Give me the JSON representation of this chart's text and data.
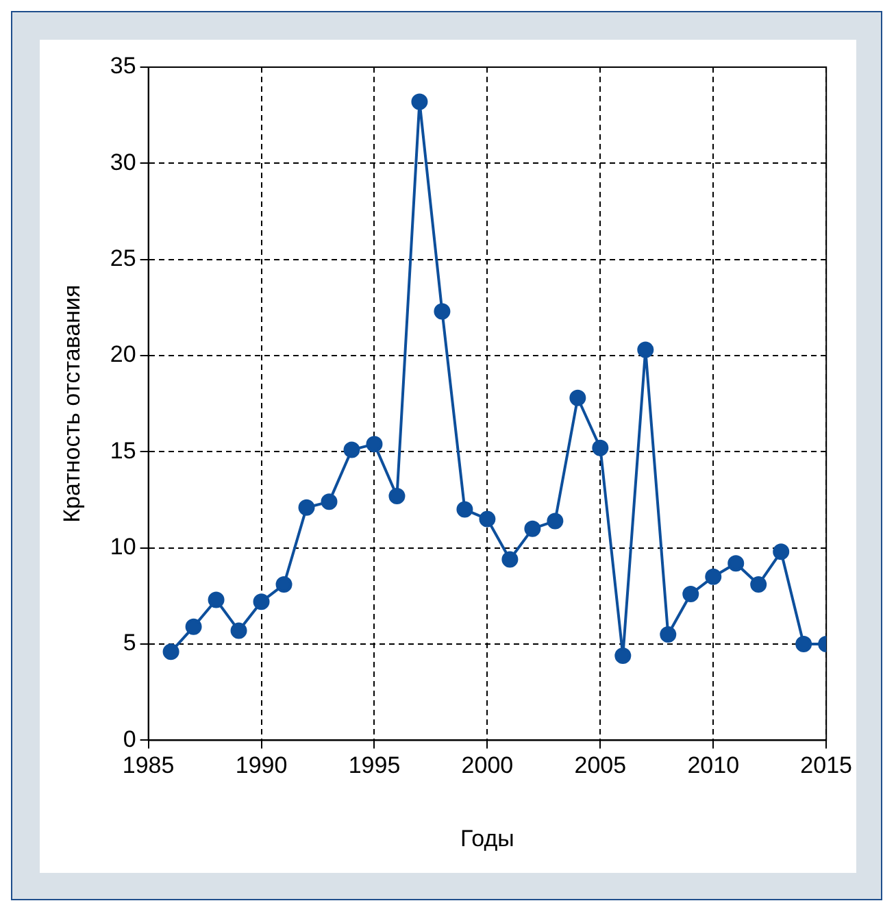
{
  "chart_data": {
    "type": "line",
    "xlabel": "Годы",
    "ylabel": "Кратность отставания",
    "x": [
      1986,
      1987,
      1988,
      1989,
      1990,
      1991,
      1992,
      1993,
      1994,
      1995,
      1996,
      1997,
      1998,
      1999,
      2000,
      2001,
      2002,
      2003,
      2004,
      2005,
      2006,
      2007,
      2008,
      2009,
      2010,
      2011,
      2012,
      2013,
      2014,
      2015
    ],
    "series": [
      {
        "color": "#0d4f9c",
        "values": [
          4.6,
          5.9,
          7.3,
          5.7,
          7.2,
          8.1,
          12.1,
          12.4,
          15.1,
          15.4,
          12.7,
          33.2,
          22.3,
          12.0,
          11.5,
          9.4,
          11.0,
          11.4,
          17.8,
          15.2,
          4.4,
          20.3,
          5.5,
          7.6,
          8.5,
          9.2,
          8.1,
          9.8,
          5.0,
          5.0
        ]
      }
    ],
    "xlim": [
      1985,
      2015
    ],
    "xticks": [
      1985,
      1990,
      1995,
      2000,
      2005,
      2010,
      2015
    ],
    "ylim": [
      0,
      35
    ],
    "yticks": [
      0,
      5,
      10,
      15,
      20,
      25,
      30,
      35
    ],
    "grid": true,
    "marker": "circle",
    "line_style": "solid",
    "legend": false
  }
}
